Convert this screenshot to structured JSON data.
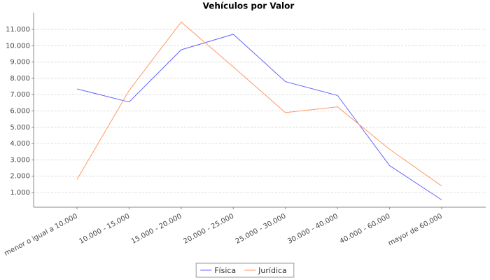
{
  "chart_data": {
    "type": "line",
    "title": "Vehículos por Valor",
    "categories": [
      "menor o igual a 10.000",
      "10.000 - 15.000",
      "15.000 - 20.000",
      "20.000 - 25.000",
      "25.000 - 30.000",
      "30.000 - 40.000",
      "40.000 - 60.000",
      "mayor de 60.000"
    ],
    "series": [
      {
        "name": "Física",
        "color": "#6666ff",
        "values": [
          7350,
          6550,
          9750,
          10700,
          7800,
          6950,
          2650,
          550
        ]
      },
      {
        "name": "Jurídica",
        "color": "#ff9966",
        "values": [
          1800,
          7250,
          11450,
          8700,
          5900,
          6250,
          3650,
          1400
        ]
      }
    ],
    "ylim": [
      100,
      12030
    ],
    "yticks": [
      {
        "value": 1000,
        "label": "1.000"
      },
      {
        "value": 2000,
        "label": "2.000"
      },
      {
        "value": 3000,
        "label": "3.000"
      },
      {
        "value": 4000,
        "label": "4.000"
      },
      {
        "value": 5000,
        "label": "5.000"
      },
      {
        "value": 6000,
        "label": "6.000"
      },
      {
        "value": 7000,
        "label": "7.000"
      },
      {
        "value": 8000,
        "label": "8.000"
      },
      {
        "value": 9000,
        "label": "9.000"
      },
      {
        "value": 10000,
        "label": "10.000"
      },
      {
        "value": 11000,
        "label": "11.000"
      }
    ],
    "grid": true,
    "legend": "bottom"
  }
}
